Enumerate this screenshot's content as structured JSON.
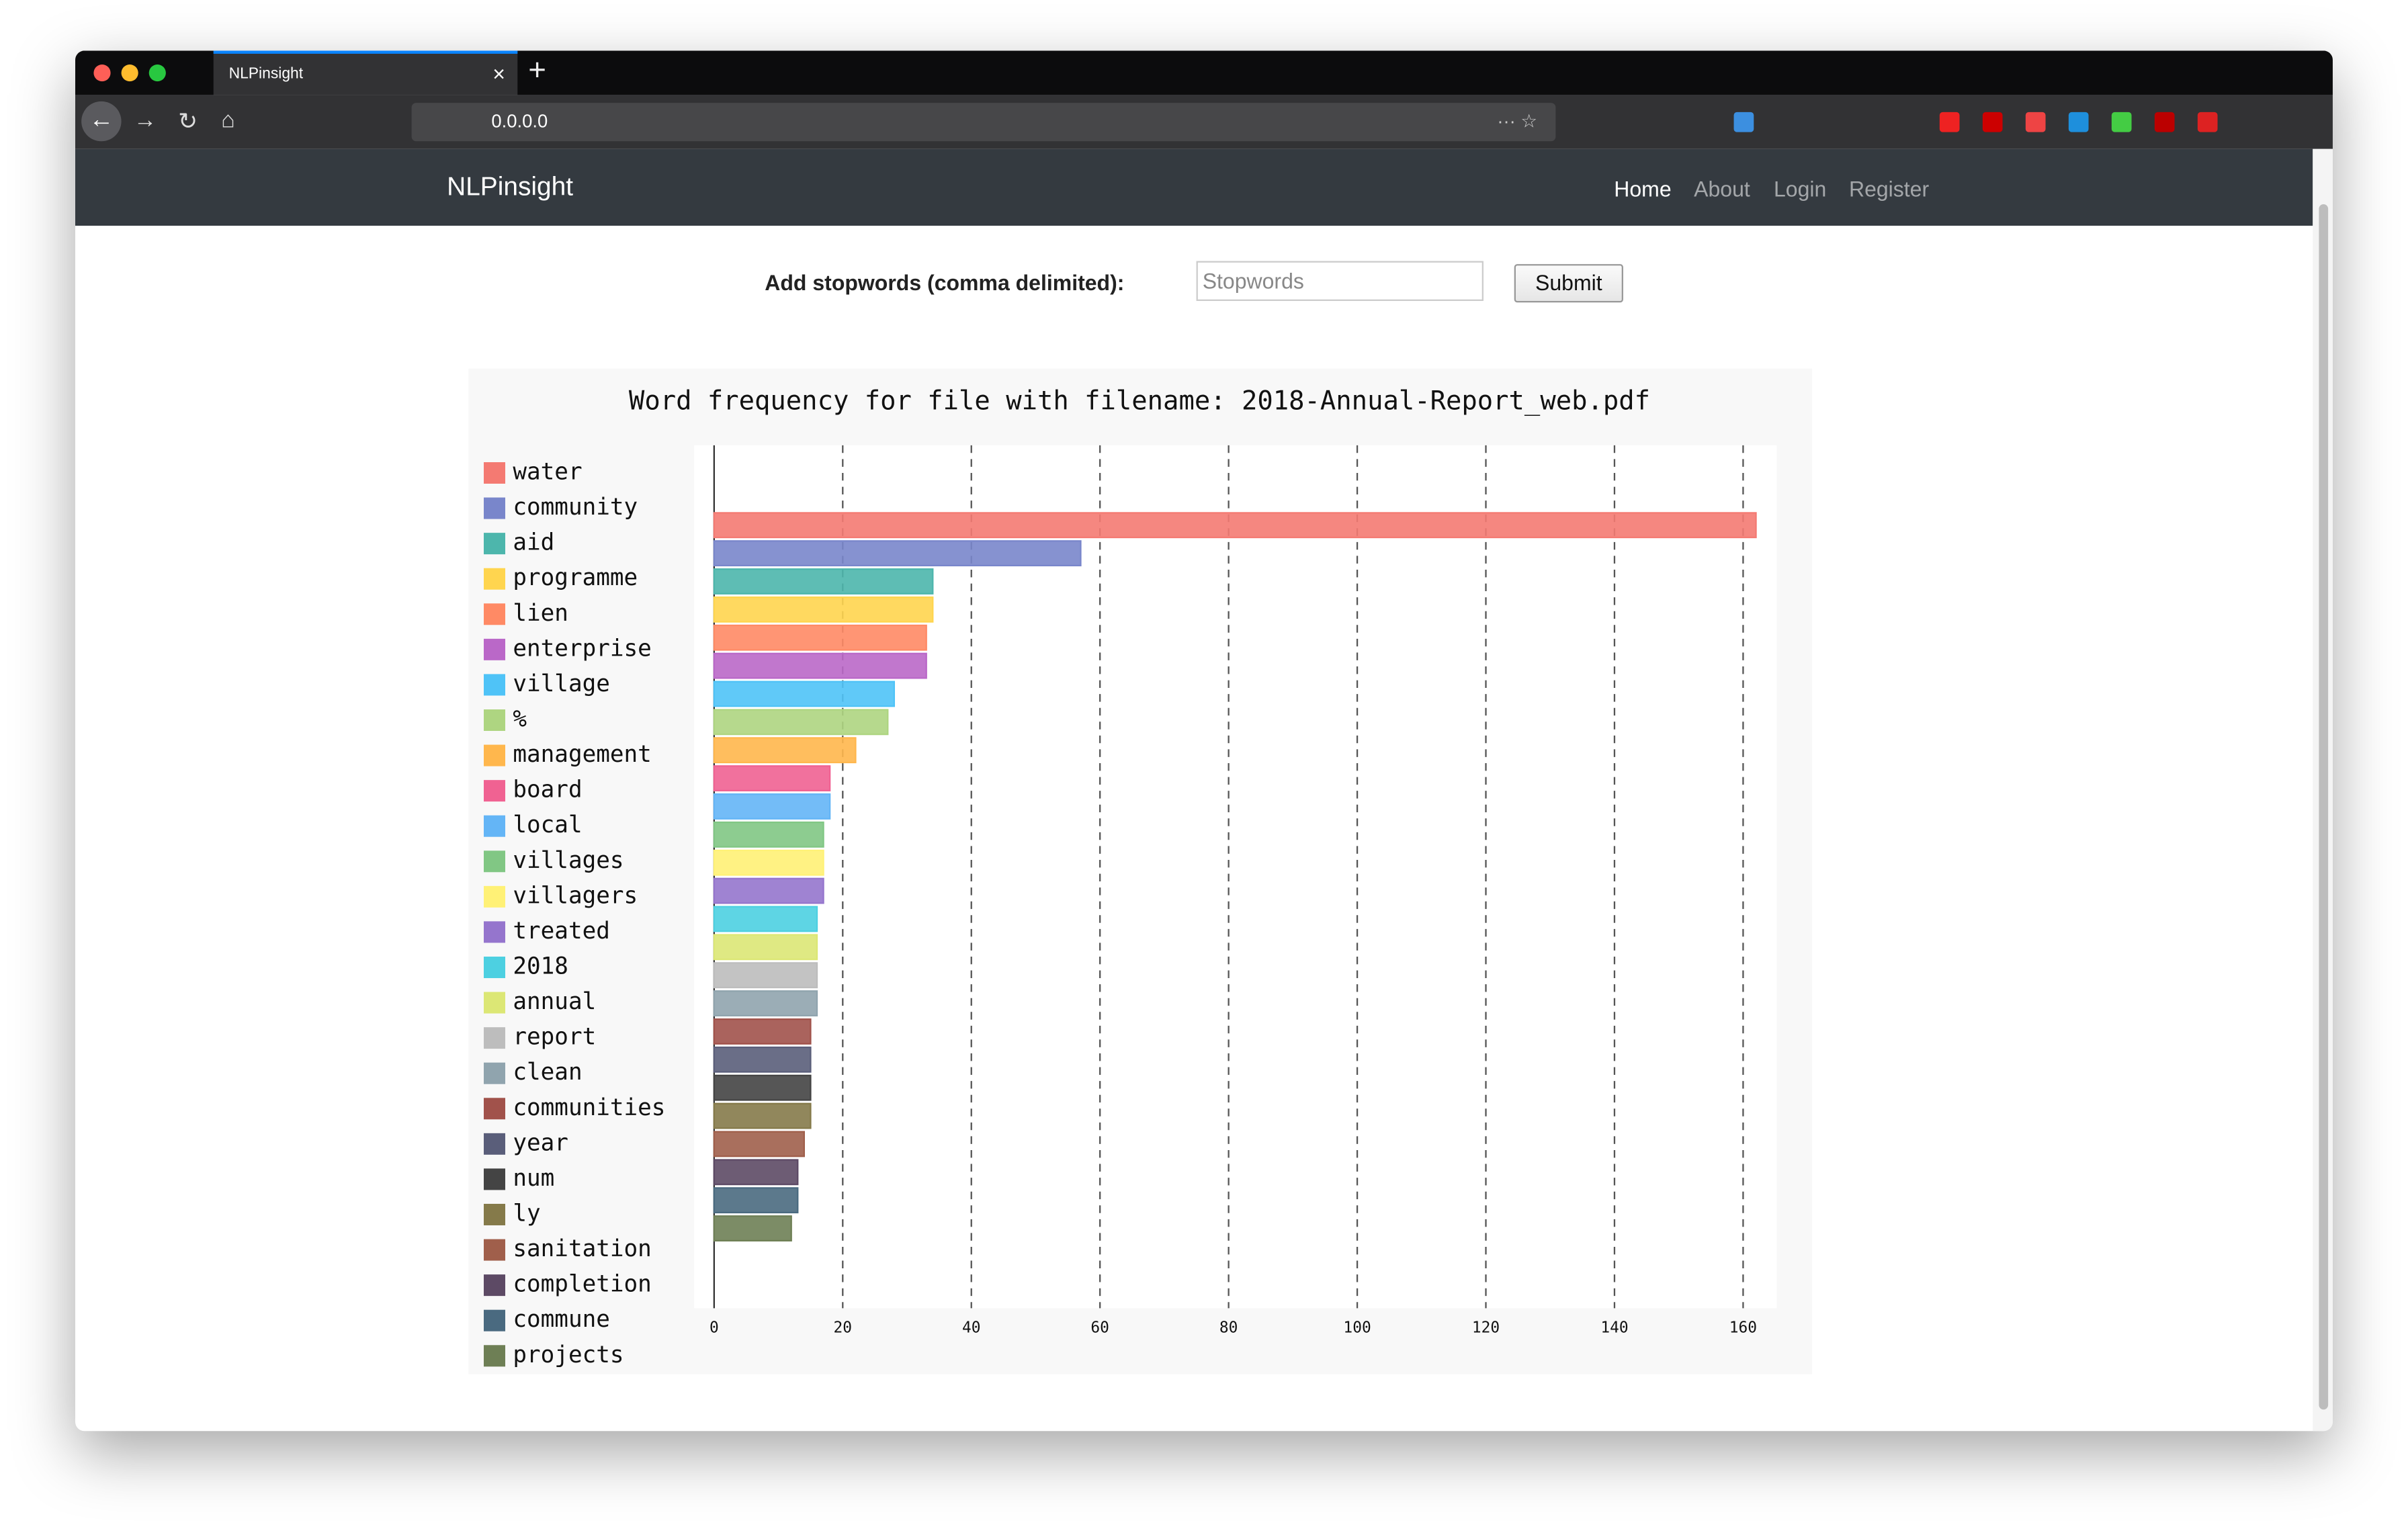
{
  "browser": {
    "tab_title": "NLPinsight",
    "url": "0.0.0.0"
  },
  "navbar": {
    "brand": "NLPinsight",
    "links": [
      "Home",
      "About",
      "Login",
      "Register"
    ]
  },
  "form": {
    "label": "Add stopwords (comma delimited):",
    "placeholder": "Stopwords",
    "button": "Submit"
  },
  "chart_data": {
    "type": "bar",
    "orientation": "horizontal",
    "title": "Word frequency for file with filename: 2018-Annual-Report_web.pdf",
    "categories": [
      "water",
      "community",
      "aid",
      "programme",
      "lien",
      "enterprise",
      "village",
      "%",
      "management",
      "board",
      "local",
      "villages",
      "villagers",
      "treated",
      "2018",
      "annual",
      "report",
      "clean",
      "communities",
      "year",
      "num",
      "ly",
      "sanitation",
      "completion",
      "commune",
      "projects"
    ],
    "values": [
      162,
      57,
      34,
      34,
      33,
      33,
      28,
      27,
      22,
      18,
      18,
      17,
      17,
      17,
      16,
      16,
      16,
      16,
      15,
      15,
      15,
      15,
      14,
      13,
      13,
      12
    ],
    "colors": [
      "#f47a72",
      "#7986cb",
      "#4db6ac",
      "#ffd54f",
      "#ff8a65",
      "#ba68c8",
      "#4fc3f7",
      "#aed581",
      "#ffb74d",
      "#f06292",
      "#64b5f6",
      "#81c784",
      "#fff176",
      "#9575cd",
      "#4dd0e1",
      "#dce775",
      "#bdbdbd",
      "#90a4ae",
      "#a1524b",
      "#5a5e7a",
      "#444444",
      "#857a4a",
      "#a05f4b",
      "#5d4a65",
      "#4a6a80",
      "#6e7f55"
    ],
    "xlim": [
      0,
      165
    ],
    "xticks": [
      0,
      20,
      40,
      60,
      80,
      100,
      120,
      140,
      160
    ],
    "grid": true,
    "legend": "left"
  }
}
